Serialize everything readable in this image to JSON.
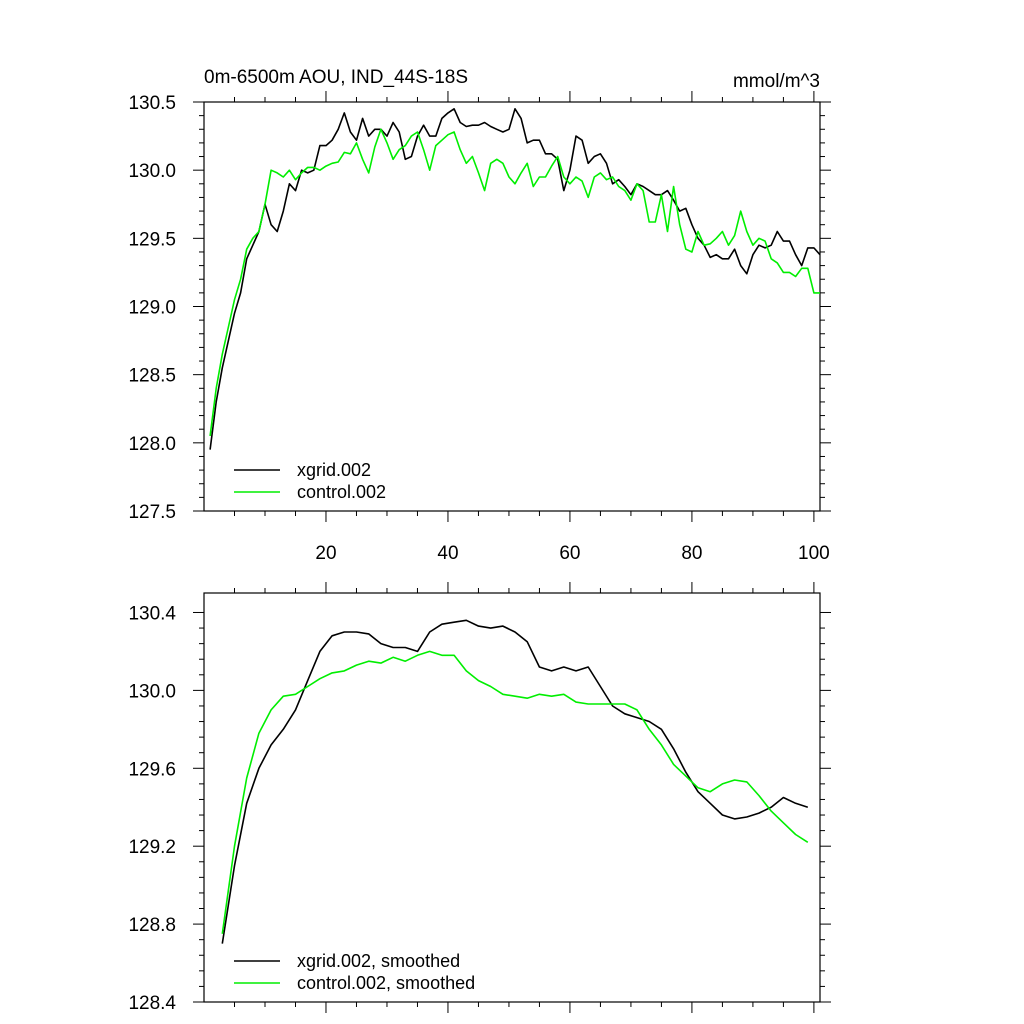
{
  "colors": {
    "series_1": "#000000",
    "series_2": "#00ee00"
  },
  "chart_data": [
    {
      "type": "line",
      "title": "0m-6500m AOU, IND_44S-18S",
      "units": "mmol/m^3",
      "xlim": [
        0,
        101
      ],
      "ylim": [
        127.5,
        130.5
      ],
      "x_ticks": [
        20,
        40,
        60,
        80,
        100
      ],
      "x_tick_labels": [
        "20",
        "40",
        "60",
        "80",
        "100"
      ],
      "y_ticks": [
        127.5,
        128.0,
        128.5,
        129.0,
        129.5,
        130.0,
        130.5
      ],
      "y_tick_labels": [
        "127.5",
        "128.0",
        "128.5",
        "129.0",
        "129.5",
        "130.0",
        "130.5"
      ],
      "legend_position": "bottom-left",
      "series": [
        {
          "name": "xgrid.002",
          "color": "#000000",
          "x": [
            1,
            2,
            3,
            4,
            5,
            6,
            7,
            8,
            9,
            10,
            11,
            12,
            13,
            14,
            15,
            16,
            17,
            18,
            19,
            20,
            21,
            22,
            23,
            24,
            25,
            26,
            27,
            28,
            29,
            30,
            31,
            32,
            33,
            34,
            35,
            36,
            37,
            38,
            39,
            40,
            41,
            42,
            43,
            44,
            45,
            46,
            47,
            48,
            49,
            50,
            51,
            52,
            53,
            54,
            55,
            56,
            57,
            58,
            59,
            60,
            61,
            62,
            63,
            64,
            65,
            66,
            67,
            68,
            69,
            70,
            71,
            72,
            73,
            74,
            75,
            76,
            77,
            78,
            79,
            80,
            81,
            82,
            83,
            84,
            85,
            86,
            87,
            88,
            89,
            90,
            91,
            92,
            93,
            94,
            95,
            96,
            97,
            98,
            99,
            100,
            101
          ],
          "y": [
            127.95,
            128.3,
            128.55,
            128.75,
            128.95,
            129.1,
            129.35,
            129.45,
            129.55,
            129.75,
            129.6,
            129.55,
            129.7,
            129.9,
            129.85,
            130.0,
            129.98,
            130.0,
            130.18,
            130.18,
            130.22,
            130.3,
            130.42,
            130.28,
            130.22,
            130.38,
            130.25,
            130.3,
            130.3,
            130.25,
            130.35,
            130.28,
            130.08,
            130.1,
            130.25,
            130.33,
            130.25,
            130.25,
            130.38,
            130.42,
            130.45,
            130.35,
            130.32,
            130.33,
            130.33,
            130.35,
            130.32,
            130.3,
            130.28,
            130.3,
            130.45,
            130.38,
            130.2,
            130.22,
            130.22,
            130.12,
            130.12,
            130.08,
            129.85,
            130.0,
            130.25,
            130.22,
            130.05,
            130.1,
            130.12,
            130.05,
            129.9,
            129.93,
            129.88,
            129.82,
            129.9,
            129.88,
            129.85,
            129.82,
            129.82,
            129.85,
            129.78,
            129.7,
            129.72,
            129.6,
            129.5,
            129.45,
            129.36,
            129.38,
            129.35,
            129.35,
            129.42,
            129.3,
            129.24,
            129.38,
            129.45,
            129.43,
            129.45,
            129.55,
            129.48,
            129.48,
            129.38,
            129.3,
            129.43,
            129.43,
            129.38
          ]
        },
        {
          "name": "control.002",
          "color": "#00ee00",
          "x": [
            1,
            2,
            3,
            4,
            5,
            6,
            7,
            8,
            9,
            10,
            11,
            12,
            13,
            14,
            15,
            16,
            17,
            18,
            19,
            20,
            21,
            22,
            23,
            24,
            25,
            26,
            27,
            28,
            29,
            30,
            31,
            32,
            33,
            34,
            35,
            36,
            37,
            38,
            39,
            40,
            41,
            42,
            43,
            44,
            45,
            46,
            47,
            48,
            49,
            50,
            51,
            52,
            53,
            54,
            55,
            56,
            57,
            58,
            59,
            60,
            61,
            62,
            63,
            64,
            65,
            66,
            67,
            68,
            69,
            70,
            71,
            72,
            73,
            74,
            75,
            76,
            77,
            78,
            79,
            80,
            81,
            82,
            83,
            84,
            85,
            86,
            87,
            88,
            89,
            90,
            91,
            92,
            93,
            94,
            95,
            96,
            97,
            98,
            99,
            100,
            101
          ],
          "y": [
            128.05,
            128.4,
            128.65,
            128.85,
            129.05,
            129.2,
            129.42,
            129.5,
            129.55,
            129.75,
            130.0,
            129.98,
            129.95,
            130.0,
            129.93,
            129.98,
            130.02,
            130.02,
            130.0,
            130.03,
            130.05,
            130.06,
            130.13,
            130.12,
            130.2,
            130.08,
            129.98,
            130.17,
            130.3,
            130.2,
            130.08,
            130.15,
            130.18,
            130.25,
            130.28,
            130.15,
            130.0,
            130.18,
            130.22,
            130.26,
            130.28,
            130.15,
            130.05,
            130.1,
            129.98,
            129.85,
            130.05,
            130.08,
            130.05,
            129.95,
            129.9,
            129.98,
            130.05,
            129.88,
            129.95,
            129.95,
            130.03,
            130.1,
            129.95,
            129.9,
            129.95,
            129.92,
            129.8,
            129.95,
            129.98,
            129.93,
            129.95,
            129.88,
            129.85,
            129.78,
            129.9,
            129.85,
            129.62,
            129.62,
            129.82,
            129.55,
            129.88,
            129.6,
            129.42,
            129.4,
            129.55,
            129.45,
            129.46,
            129.5,
            129.55,
            129.45,
            129.52,
            129.7,
            129.55,
            129.45,
            129.5,
            129.48,
            129.35,
            129.32,
            129.25,
            129.25,
            129.22,
            129.28,
            129.28,
            129.1,
            129.1
          ]
        }
      ]
    },
    {
      "type": "line",
      "title": "",
      "xlim": [
        0,
        101
      ],
      "ylim": [
        128.4,
        130.5
      ],
      "x_ticks": [
        20,
        40,
        60,
        80,
        100
      ],
      "x_tick_labels": [],
      "y_ticks": [
        128.4,
        128.8,
        129.2,
        129.6,
        130.0,
        130.4
      ],
      "y_tick_labels": [
        "128.4",
        "128.8",
        "129.2",
        "129.6",
        "130.0",
        "130.4"
      ],
      "legend_position": "bottom-left",
      "series": [
        {
          "name": "xgrid.002, smoothed",
          "color": "#000000",
          "x": [
            3,
            5,
            7,
            9,
            11,
            13,
            15,
            17,
            19,
            21,
            23,
            25,
            27,
            29,
            31,
            33,
            35,
            37,
            39,
            41,
            43,
            45,
            47,
            49,
            51,
            53,
            55,
            57,
            59,
            61,
            63,
            65,
            67,
            69,
            71,
            73,
            75,
            77,
            79,
            81,
            83,
            85,
            87,
            89,
            91,
            93,
            95,
            97,
            99
          ],
          "y": [
            128.7,
            129.1,
            129.42,
            129.6,
            129.72,
            129.8,
            129.9,
            130.05,
            130.2,
            130.28,
            130.3,
            130.3,
            130.29,
            130.24,
            130.22,
            130.22,
            130.2,
            130.3,
            130.34,
            130.35,
            130.36,
            130.33,
            130.32,
            130.33,
            130.3,
            130.25,
            130.12,
            130.1,
            130.12,
            130.1,
            130.12,
            130.02,
            129.92,
            129.88,
            129.86,
            129.84,
            129.8,
            129.7,
            129.58,
            129.48,
            129.42,
            129.36,
            129.34,
            129.35,
            129.37,
            129.4,
            129.45,
            129.42,
            129.4
          ]
        },
        {
          "name": "control.002, smoothed",
          "color": "#00ee00",
          "x": [
            3,
            5,
            7,
            9,
            11,
            13,
            15,
            17,
            19,
            21,
            23,
            25,
            27,
            29,
            31,
            33,
            35,
            37,
            39,
            41,
            43,
            45,
            47,
            49,
            51,
            53,
            55,
            57,
            59,
            61,
            63,
            65,
            67,
            69,
            71,
            73,
            75,
            77,
            79,
            81,
            83,
            85,
            87,
            89,
            91,
            93,
            95,
            97,
            99
          ],
          "y": [
            128.75,
            129.2,
            129.55,
            129.78,
            129.9,
            129.97,
            129.98,
            130.02,
            130.06,
            130.09,
            130.1,
            130.13,
            130.15,
            130.14,
            130.17,
            130.15,
            130.18,
            130.2,
            130.18,
            130.18,
            130.1,
            130.05,
            130.02,
            129.98,
            129.97,
            129.96,
            129.98,
            129.97,
            129.98,
            129.94,
            129.93,
            129.93,
            129.93,
            129.93,
            129.9,
            129.8,
            129.72,
            129.62,
            129.56,
            129.5,
            129.48,
            129.52,
            129.54,
            129.53,
            129.46,
            129.38,
            129.32,
            129.26,
            129.22
          ]
        }
      ]
    }
  ]
}
